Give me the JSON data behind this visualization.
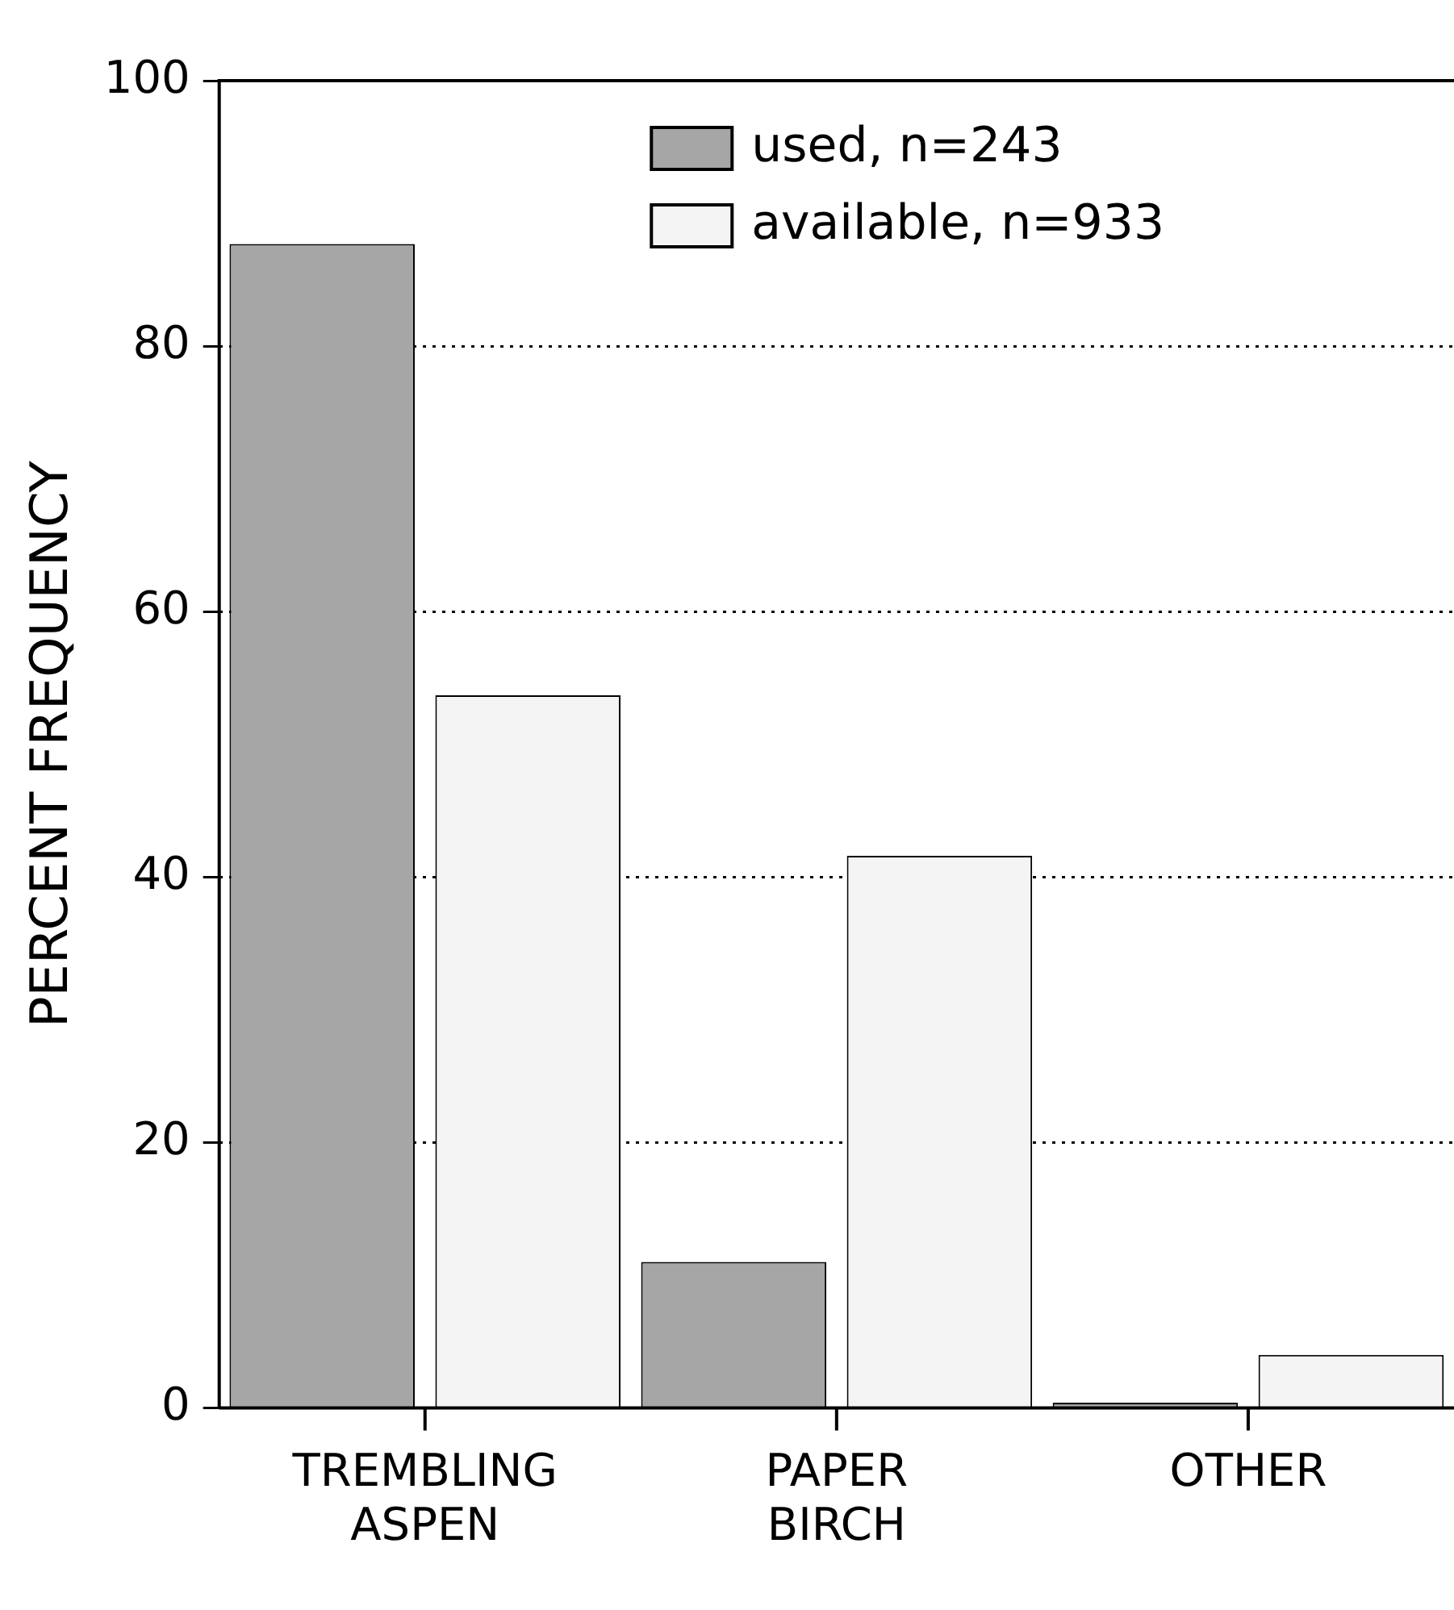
{
  "chart_data": {
    "type": "bar",
    "ylabel": "PERCENT FREQUENCY",
    "categories": [
      "TREMBLING ASPEN",
      "PAPER BIRCH",
      "OTHER"
    ],
    "series": [
      {
        "name": "used, n=243",
        "color": "#a6a6a6",
        "values": [
          87.7,
          11.0,
          0.4
        ]
      },
      {
        "name": "available, n=933",
        "color": "#f4f4f4",
        "values": [
          53.7,
          41.6,
          4.0
        ]
      }
    ],
    "ylim": [
      0,
      100
    ],
    "yticks": [
      0,
      20,
      40,
      60,
      80,
      100
    ],
    "grid": "y",
    "legend": "top right"
  }
}
